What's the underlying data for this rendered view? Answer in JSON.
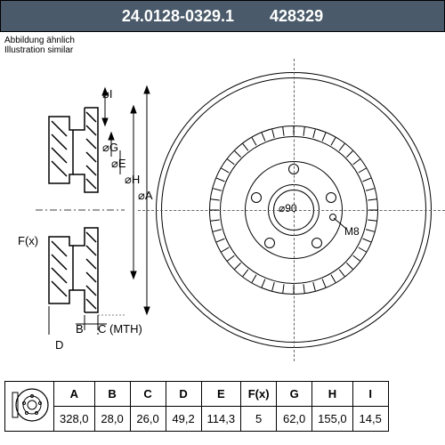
{
  "header": {
    "part_number": "24.0128-0329.1",
    "code": "428329"
  },
  "note": {
    "line1": "Abbildung ähnlich",
    "line2": "Illustration similar"
  },
  "side_labels": {
    "I": "⌀I",
    "G": "⌀G",
    "E": "⌀E",
    "H": "⌀H",
    "A": "⌀A",
    "F": "F(x)",
    "B": "B",
    "D": "D",
    "C": "C (MTH)"
  },
  "front_labels": {
    "diameter": "⌀90",
    "thread": "M8"
  },
  "table": {
    "headers": [
      "A",
      "B",
      "C",
      "D",
      "E",
      "F(x)",
      "G",
      "H",
      "I"
    ],
    "values": [
      "328,0",
      "28,0",
      "26,0",
      "49,2",
      "114,3",
      "5",
      "62,0",
      "155,0",
      "14,5"
    ]
  },
  "colors": {
    "header_bg": "#4a5a6a",
    "header_text": "#ffffff",
    "line": "#000000",
    "bg": "#ffffff"
  }
}
